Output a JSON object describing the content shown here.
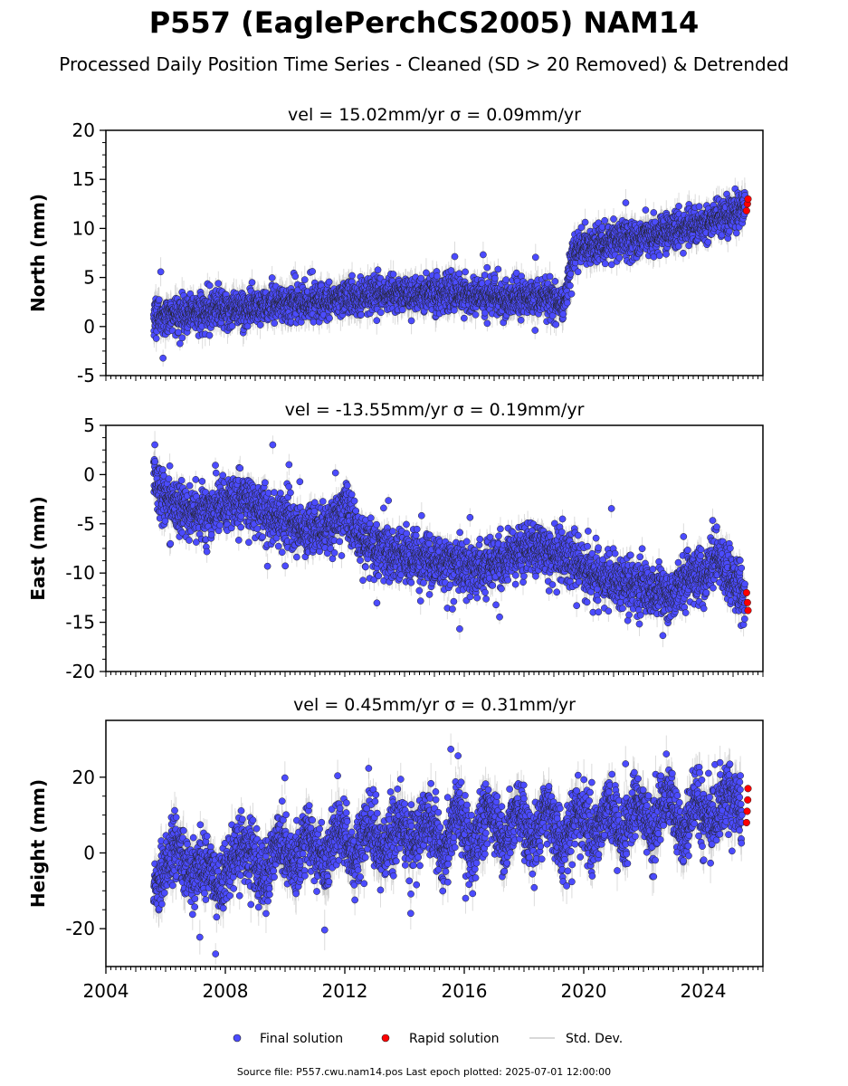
{
  "figure": {
    "title": "P557 (EaglePerchCS2005) NAM14",
    "subtitle": "Processed Daily Position Time Series - Cleaned (SD > 20 Removed) & Detrended",
    "footer": "Source file: P557.cwu.nam14.pos  Last epoch plotted: 2025-07-01 12:00:00"
  },
  "legend": {
    "final": "Final solution",
    "rapid": "Rapid solution",
    "std": "Std. Dev."
  },
  "colors": {
    "final": "#4b4bff",
    "rapid": "#ff0000",
    "std": "#bfbfbf",
    "edge": "#222222"
  },
  "chart_data": [
    {
      "type": "scatter",
      "panel_title": "vel = 15.02mm/yr   σ = 0.09mm/yr",
      "ylabel": "North (mm)",
      "xlim": [
        2004,
        2026
      ],
      "ylim": [
        -5,
        20
      ],
      "yticks": [
        -5,
        0,
        5,
        10,
        15,
        20
      ],
      "xticks": [],
      "xticklabels": [],
      "series": [
        {
          "name": "Final solution",
          "x": [
            2005.6,
            2006.0,
            2006.5,
            2007.0,
            2007.5,
            2008.0,
            2008.5,
            2009.0,
            2009.5,
            2010.0,
            2010.5,
            2011.0,
            2011.5,
            2012.0,
            2012.5,
            2013.0,
            2013.5,
            2014.0,
            2014.5,
            2015.0,
            2015.5,
            2016.0,
            2016.5,
            2017.0,
            2017.5,
            2018.0,
            2018.5,
            2019.0,
            2019.4,
            2019.6,
            2020.0,
            2020.5,
            2021.0,
            2021.5,
            2022.0,
            2022.5,
            2023.0,
            2023.5,
            2024.0,
            2024.5,
            2025.0,
            2025.4
          ],
          "y": [
            1.0,
            1.2,
            1.3,
            1.5,
            1.7,
            1.8,
            1.9,
            2.0,
            2.1,
            2.2,
            2.4,
            2.6,
            2.7,
            2.9,
            3.0,
            3.2,
            3.3,
            3.4,
            3.3,
            3.3,
            3.2,
            3.3,
            3.1,
            3.0,
            3.0,
            2.9,
            2.9,
            2.8,
            2.6,
            7.5,
            8.0,
            8.3,
            8.7,
            9.0,
            9.2,
            9.4,
            9.8,
            10.2,
            10.5,
            11.0,
            11.5,
            12.0
          ]
        },
        {
          "name": "Rapid solution",
          "x": [
            2025.45,
            2025.48,
            2025.5
          ],
          "y": [
            11.8,
            12.5,
            13.0
          ]
        }
      ]
    },
    {
      "type": "scatter",
      "panel_title": "vel = -13.55mm/yr   σ = 0.19mm/yr",
      "ylabel": "East (mm)",
      "xlim": [
        2004,
        2026
      ],
      "ylim": [
        -20,
        5
      ],
      "yticks": [
        -20,
        -15,
        -10,
        -5,
        0,
        5
      ],
      "xticks": [],
      "xticklabels": [],
      "series": [
        {
          "name": "Final solution",
          "x": [
            2005.6,
            2005.8,
            2006.0,
            2006.5,
            2007.0,
            2007.5,
            2008.0,
            2008.5,
            2009.0,
            2009.5,
            2010.0,
            2010.5,
            2011.0,
            2011.5,
            2012.0,
            2012.5,
            2013.0,
            2013.5,
            2014.0,
            2014.5,
            2015.0,
            2015.5,
            2016.0,
            2016.5,
            2017.0,
            2017.5,
            2018.0,
            2018.5,
            2019.0,
            2019.5,
            2020.0,
            2020.5,
            2021.0,
            2021.5,
            2022.0,
            2022.5,
            2023.0,
            2023.5,
            2024.0,
            2024.5,
            2025.0,
            2025.4
          ],
          "y": [
            0.0,
            -1.5,
            -2.5,
            -3.5,
            -4.0,
            -3.8,
            -3.0,
            -2.5,
            -3.5,
            -4.0,
            -4.5,
            -5.5,
            -6.0,
            -5.0,
            -3.5,
            -6.5,
            -7.5,
            -8.0,
            -8.3,
            -8.5,
            -8.8,
            -9.0,
            -9.3,
            -9.5,
            -9.0,
            -8.5,
            -7.5,
            -7.5,
            -8.0,
            -8.5,
            -9.5,
            -10.0,
            -10.8,
            -11.0,
            -11.5,
            -12.0,
            -12.5,
            -10.0,
            -10.5,
            -8.5,
            -11.0,
            -12.5
          ]
        },
        {
          "name": "Rapid solution",
          "x": [
            2025.45,
            2025.48,
            2025.5
          ],
          "y": [
            -12.0,
            -13.0,
            -13.8
          ]
        }
      ]
    },
    {
      "type": "scatter",
      "panel_title": "vel = 0.45mm/yr   σ = 0.31mm/yr",
      "ylabel": "Height (mm)",
      "xlim": [
        2004,
        2026
      ],
      "ylim": [
        -30,
        35
      ],
      "yticks": [
        -20,
        0,
        20
      ],
      "xticks": [
        2004,
        2008,
        2012,
        2016,
        2020,
        2024
      ],
      "xticklabels": [
        "2004",
        "2008",
        "2012",
        "2016",
        "2020",
        "2024"
      ],
      "series": [
        {
          "name": "Final solution",
          "x": [
            2005.6,
            2006.0,
            2006.3,
            2006.8,
            2007.3,
            2007.8,
            2008.3,
            2008.8,
            2009.3,
            2009.8,
            2010.3,
            2010.8,
            2011.3,
            2011.8,
            2012.3,
            2012.8,
            2013.3,
            2013.8,
            2014.3,
            2014.8,
            2015.3,
            2015.8,
            2016.3,
            2016.8,
            2017.3,
            2017.8,
            2018.3,
            2018.8,
            2019.3,
            2019.8,
            2020.3,
            2020.8,
            2021.3,
            2021.8,
            2022.3,
            2022.8,
            2023.3,
            2023.8,
            2024.3,
            2024.8,
            2025.3
          ],
          "y": [
            -8,
            -5,
            3,
            -6,
            -2,
            -9,
            -1,
            2,
            -8,
            4,
            -3,
            5,
            -4,
            8,
            -2,
            8,
            0,
            9,
            2,
            10,
            -1,
            12,
            0,
            13,
            1,
            12,
            2,
            14,
            0,
            12,
            3,
            13,
            4,
            14,
            6,
            17,
            5,
            14,
            7,
            16,
            10
          ]
        },
        {
          "name": "Rapid solution",
          "x": [
            2025.45,
            2025.47,
            2025.49,
            2025.5
          ],
          "y": [
            8,
            11,
            14,
            17
          ]
        }
      ]
    }
  ]
}
